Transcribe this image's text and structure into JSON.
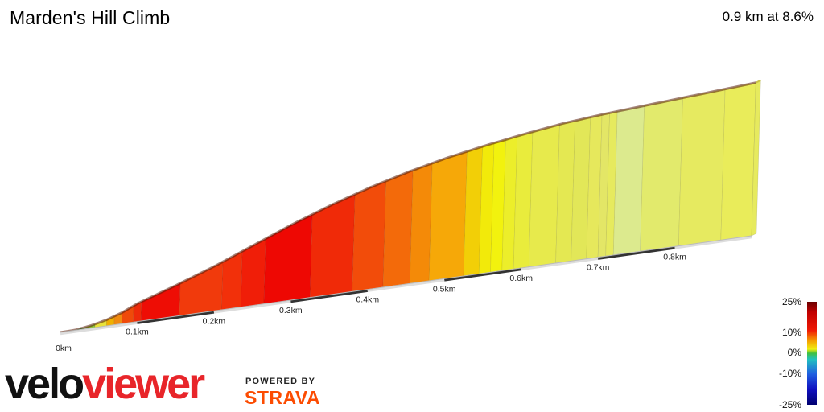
{
  "header": {
    "title": "Marden's Hill Climb",
    "summary": "0.9 km at 8.6%"
  },
  "branding": {
    "logo_part1": "velo",
    "logo_part2": "viewer",
    "powered_by": "POWERED BY",
    "strava": "STRAVA"
  },
  "chart_data": {
    "type": "area",
    "title": "Marden's Hill Climb",
    "x_unit": "km",
    "xlim": [
      0,
      0.9
    ],
    "x_ticks": [
      "0km",
      "0.1km",
      "0.2km",
      "0.3km",
      "0.4km",
      "0.5km",
      "0.6km",
      "0.7km",
      "0.8km"
    ],
    "elevation_profile": {
      "x_km": [
        0,
        0.02,
        0.04,
        0.06,
        0.07,
        0.08,
        0.09,
        0.1,
        0.15,
        0.2,
        0.25,
        0.3,
        0.35,
        0.4,
        0.45,
        0.5,
        0.55,
        0.6,
        0.65,
        0.7,
        0.75,
        0.8,
        0.85,
        0.9
      ],
      "relative_height": [
        0,
        0.2,
        1.5,
        3.5,
        5.0,
        6.5,
        8.5,
        10.5,
        18,
        26,
        35,
        44,
        52,
        59,
        65,
        70,
        74,
        77.5,
        80.5,
        82.5,
        84,
        85.5,
        87,
        88.5
      ]
    },
    "gradient_segments": [
      {
        "from_km": 0.0,
        "to_km": 0.01,
        "color": "#60c5c0"
      },
      {
        "from_km": 0.01,
        "to_km": 0.03,
        "color": "#2aa84a"
      },
      {
        "from_km": 0.03,
        "to_km": 0.045,
        "color": "#8ec63c"
      },
      {
        "from_km": 0.045,
        "to_km": 0.06,
        "color": "#e8e23a"
      },
      {
        "from_km": 0.06,
        "to_km": 0.07,
        "color": "#f0b000"
      },
      {
        "from_km": 0.07,
        "to_km": 0.08,
        "color": "#f08a10"
      },
      {
        "from_km": 0.08,
        "to_km": 0.095,
        "color": "#ef4a0a"
      },
      {
        "from_km": 0.095,
        "to_km": 0.105,
        "color": "#ee2a0a"
      },
      {
        "from_km": 0.105,
        "to_km": 0.155,
        "color": "#ee0d05"
      },
      {
        "from_km": 0.155,
        "to_km": 0.21,
        "color": "#f13a0c"
      },
      {
        "from_km": 0.21,
        "to_km": 0.235,
        "color": "#f2300a"
      },
      {
        "from_km": 0.235,
        "to_km": 0.265,
        "color": "#f01e08"
      },
      {
        "from_km": 0.265,
        "to_km": 0.325,
        "color": "#ee0803"
      },
      {
        "from_km": 0.325,
        "to_km": 0.38,
        "color": "#f02a08"
      },
      {
        "from_km": 0.38,
        "to_km": 0.42,
        "color": "#f24c0a"
      },
      {
        "from_km": 0.42,
        "to_km": 0.455,
        "color": "#f36a0a"
      },
      {
        "from_km": 0.455,
        "to_km": 0.48,
        "color": "#f48a08"
      },
      {
        "from_km": 0.48,
        "to_km": 0.525,
        "color": "#f6a808"
      },
      {
        "from_km": 0.525,
        "to_km": 0.545,
        "color": "#f2cf07"
      },
      {
        "from_km": 0.545,
        "to_km": 0.56,
        "color": "#f2ea0a"
      },
      {
        "from_km": 0.56,
        "to_km": 0.575,
        "color": "#f2f20e"
      },
      {
        "from_km": 0.575,
        "to_km": 0.59,
        "color": "#ecee2a"
      },
      {
        "from_km": 0.59,
        "to_km": 0.61,
        "color": "#e9ec3c"
      },
      {
        "from_km": 0.61,
        "to_km": 0.645,
        "color": "#e7ea4c"
      },
      {
        "from_km": 0.645,
        "to_km": 0.665,
        "color": "#e4e852"
      },
      {
        "from_km": 0.665,
        "to_km": 0.685,
        "color": "#e2e758"
      },
      {
        "from_km": 0.685,
        "to_km": 0.7,
        "color": "#e6e85c"
      },
      {
        "from_km": 0.7,
        "to_km": 0.71,
        "color": "#e3e666"
      },
      {
        "from_km": 0.71,
        "to_km": 0.72,
        "color": "#e6ea5e"
      },
      {
        "from_km": 0.72,
        "to_km": 0.755,
        "color": "#dcea8e"
      },
      {
        "from_km": 0.755,
        "to_km": 0.805,
        "color": "#e2ea6c"
      },
      {
        "from_km": 0.805,
        "to_km": 0.86,
        "color": "#e6ea60"
      },
      {
        "from_km": 0.86,
        "to_km": 0.9,
        "color": "#e9ec5a"
      }
    ],
    "legend": {
      "placement": "right",
      "labels": [
        "25%",
        "10%",
        "0%",
        "-10%",
        "-25%"
      ]
    }
  }
}
